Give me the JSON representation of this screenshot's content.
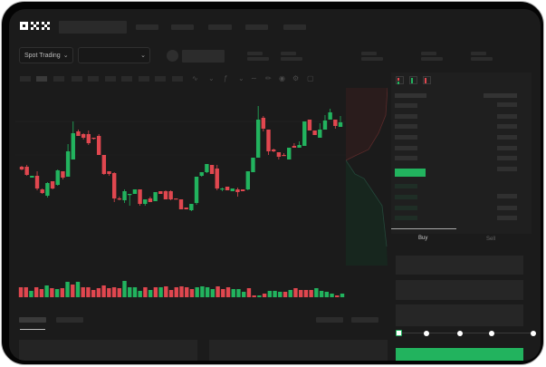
{
  "header": {
    "logo": "OKX"
  },
  "toolbar": {
    "market_type": "Spot Trading",
    "pair_select": ""
  },
  "orderbook": {
    "view_icons": [
      "orderbook-both-icon",
      "orderbook-bids-icon",
      "orderbook-asks-icon"
    ]
  },
  "trade_panel": {
    "tabs": [
      {
        "label": "Buy",
        "active": true
      },
      {
        "label": "Sell",
        "active": false
      }
    ],
    "slider_percent": 0
  },
  "colors": {
    "up": "#22b35e",
    "down": "#e0474f",
    "background": "#1b1b1b",
    "accent": "#22b35e"
  },
  "chart_data": {
    "type": "candlestick",
    "candles": [
      [
        58,
        59,
        54,
        55
      ],
      [
        58,
        60,
        48,
        49
      ],
      [
        46,
        48,
        46,
        48
      ],
      [
        48,
        53,
        32,
        34
      ],
      [
        33,
        34,
        28,
        29
      ],
      [
        26,
        41,
        24,
        40
      ],
      [
        42,
        42,
        33,
        34
      ],
      [
        38,
        55,
        37,
        54
      ],
      [
        53,
        53,
        44,
        46
      ],
      [
        47,
        83,
        47,
        75
      ],
      [
        66,
        108,
        66,
        95
      ],
      [
        97,
        99,
        92,
        92
      ],
      [
        94,
        95,
        88,
        90
      ],
      [
        94,
        98,
        82,
        84
      ],
      [
        90,
        90,
        88,
        89
      ],
      [
        92,
        94,
        71,
        71
      ],
      [
        71,
        71,
        49,
        50
      ],
      [
        53,
        53,
        48,
        50
      ],
      [
        51,
        52,
        19,
        23
      ],
      [
        23,
        25,
        21,
        22
      ],
      [
        21,
        33,
        18,
        31
      ],
      [
        27,
        28,
        15,
        28
      ],
      [
        28,
        33,
        28,
        33
      ],
      [
        33,
        33,
        15,
        17
      ],
      [
        17,
        22,
        15,
        22
      ],
      [
        23,
        25,
        19,
        19
      ],
      [
        20,
        30,
        20,
        30
      ],
      [
        31,
        31,
        28,
        28
      ],
      [
        31,
        32,
        22,
        22
      ],
      [
        31,
        32,
        21,
        22
      ],
      [
        23,
        23,
        22,
        22
      ],
      [
        22,
        22,
        11,
        11
      ],
      [
        13,
        13,
        11,
        11
      ],
      [
        10,
        17,
        9,
        17
      ],
      [
        18,
        47,
        16,
        47
      ],
      [
        48,
        52,
        47,
        52
      ],
      [
        52,
        61,
        51,
        61
      ],
      [
        60,
        60,
        50,
        50
      ],
      [
        56,
        60,
        32,
        34
      ],
      [
        33,
        35,
        31,
        34
      ],
      [
        36,
        36,
        32,
        32
      ],
      [
        31,
        34,
        31,
        34
      ],
      [
        33,
        35,
        25,
        30
      ],
      [
        33,
        33,
        31,
        31
      ],
      [
        33,
        53,
        32,
        53
      ],
      [
        52,
        68,
        52,
        68
      ],
      [
        68,
        125,
        68,
        110
      ],
      [
        112,
        114,
        97,
        100
      ],
      [
        99,
        99,
        71,
        75
      ],
      [
        77,
        78,
        74,
        75
      ],
      [
        74,
        74,
        66,
        69
      ],
      [
        71,
        73,
        70,
        70
      ],
      [
        66,
        79,
        66,
        79
      ],
      [
        81,
        84,
        79,
        79
      ],
      [
        79,
        86,
        79,
        82
      ],
      [
        81,
        108,
        81,
        108
      ],
      [
        110,
        110,
        98,
        98
      ],
      [
        98,
        98,
        93,
        93
      ],
      [
        90,
        106,
        90,
        99
      ],
      [
        99,
        115,
        99,
        109
      ],
      [
        110,
        122,
        110,
        118
      ],
      [
        110,
        110,
        100,
        103
      ],
      [
        102,
        114,
        102,
        107
      ]
    ],
    "volume": [
      [
        "R",
        11
      ],
      [
        "R",
        11
      ],
      [
        "G",
        7
      ],
      [
        "R",
        11
      ],
      [
        "R",
        9
      ],
      [
        "G",
        13
      ],
      [
        "R",
        10
      ],
      [
        "G",
        9
      ],
      [
        "R",
        10
      ],
      [
        "G",
        17
      ],
      [
        "R",
        14
      ],
      [
        "G",
        17
      ],
      [
        "R",
        11
      ],
      [
        "R",
        11
      ],
      [
        "R",
        8
      ],
      [
        "R",
        10
      ],
      [
        "R",
        13
      ],
      [
        "R",
        10
      ],
      [
        "R",
        11
      ],
      [
        "R",
        10
      ],
      [
        "G",
        18
      ],
      [
        "G",
        11
      ],
      [
        "G",
        11
      ],
      [
        "G",
        7
      ],
      [
        "R",
        11
      ],
      [
        "G",
        8
      ],
      [
        "R",
        11
      ],
      [
        "G",
        11
      ],
      [
        "R",
        12
      ],
      [
        "R",
        8
      ],
      [
        "R",
        11
      ],
      [
        "R",
        12
      ],
      [
        "R",
        11
      ],
      [
        "R",
        9
      ],
      [
        "G",
        11
      ],
      [
        "G",
        12
      ],
      [
        "G",
        11
      ],
      [
        "G",
        9
      ],
      [
        "R",
        12
      ],
      [
        "R",
        9
      ],
      [
        "R",
        11
      ],
      [
        "G",
        9
      ],
      [
        "G",
        9
      ],
      [
        "G",
        6
      ],
      [
        "R",
        10
      ],
      [
        "R",
        2
      ],
      [
        "G",
        2
      ],
      [
        "R",
        4
      ],
      [
        "G",
        7
      ],
      [
        "G",
        7
      ],
      [
        "G",
        6
      ],
      [
        "R",
        6
      ],
      [
        "G",
        8
      ],
      [
        "R",
        10
      ],
      [
        "R",
        8
      ],
      [
        "R",
        8
      ],
      [
        "R",
        8
      ],
      [
        "G",
        10
      ],
      [
        "G",
        7
      ],
      [
        "G",
        6
      ],
      [
        "G",
        4
      ],
      [
        "R",
        2
      ],
      [
        "G",
        4
      ]
    ]
  }
}
